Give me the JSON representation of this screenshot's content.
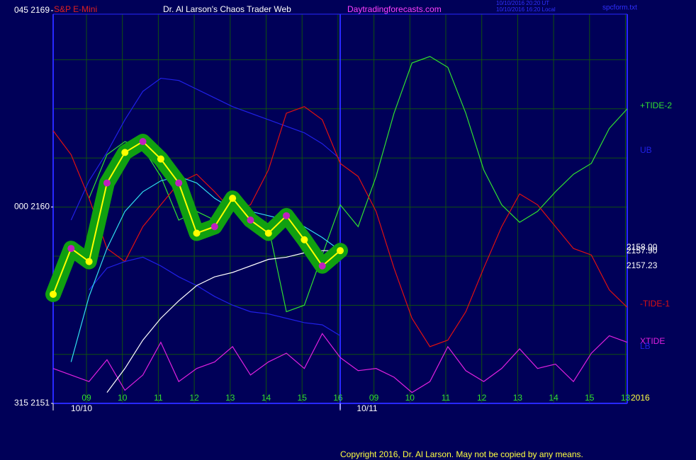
{
  "chart_data": {
    "type": "line",
    "header": {
      "symbol": "S&P E-Mini",
      "title": "Dr. Al Larson's Chaos Trader Web",
      "site": "Daytradingforecasts.com",
      "time_ut": "10/10/2016 20:20 UT",
      "time_local": "10/10/2016 16:20 Local",
      "file": "spcform.txt"
    },
    "ylim": [
      2151,
      2169
    ],
    "yticks": [
      {
        "value": 2151,
        "label": "315 2151"
      },
      {
        "value": 2160,
        "label": "000 2160"
      },
      {
        "value": 2169,
        "label": "045 2169"
      }
    ],
    "x_ticks": [
      "09",
      "10",
      "11",
      "12",
      "13",
      "14",
      "15",
      "16",
      "09",
      "10",
      "11",
      "12",
      "13",
      "14",
      "15",
      "13"
    ],
    "date_labels": [
      "10/10",
      "10/11"
    ],
    "year": "2016",
    "price_labels": [
      "2158.00",
      "2157.90",
      "2157.23"
    ],
    "copyright": "Copyright 2016, Dr. Al Larson. May not be copied by any means.",
    "series": [
      {
        "name": "+TIDE-2",
        "color": "#30e030",
        "values": [
          null,
          null,
          2160.4,
          2162.4,
          2163.0,
          2162.7,
          2161.4,
          2159.4,
          2159.8,
          2159.4,
          2160.1,
          2159.8,
          2159.1,
          2155.2,
          2155.5,
          2157.8,
          2160.1,
          2159.1,
          2161.4,
          2164.3,
          2166.6,
          2166.9,
          2166.4,
          2164.3,
          2161.7,
          2160.1,
          2159.3,
          2159.8,
          2160.7,
          2161.5,
          2162.0,
          2163.6,
          2164.5
        ]
      },
      {
        "name": "UB",
        "color": "#2020e8",
        "values": [
          null,
          2159.4,
          2161.2,
          2162.5,
          2164.0,
          2165.3,
          2165.9,
          2165.8,
          2165.4,
          2165.0,
          2164.6,
          2164.3,
          2164.0,
          2163.7,
          2163.4,
          2162.9,
          2162.2,
          null,
          null,
          null,
          null,
          null,
          null,
          null,
          null,
          null,
          null,
          null,
          null,
          null,
          null,
          null,
          null
        ]
      },
      {
        "name": "-TIDE-1",
        "color": "#e01010",
        "values": [
          2163.5,
          2162.4,
          2160.4,
          2158.1,
          2157.5,
          2159.1,
          2160.1,
          2161.1,
          2161.5,
          2160.7,
          2159.8,
          2160.1,
          2161.7,
          2164.3,
          2164.6,
          2164.0,
          2162.0,
          2161.4,
          2159.8,
          2157.2,
          2154.9,
          2153.6,
          2153.9,
          2155.2,
          2157.2,
          2159.1,
          2160.6,
          2160.1,
          2159.1,
          2158.1,
          2157.8,
          2156.2,
          2155.4
        ]
      },
      {
        "name": "XTIDE",
        "color": "#e020e0",
        "values": [
          2152.6,
          2152.3,
          2152.0,
          2153.0,
          2151.6,
          2152.3,
          2153.8,
          2152.0,
          2152.6,
          2152.9,
          2153.6,
          2152.3,
          2152.9,
          2153.3,
          2152.6,
          2154.2,
          2153.1,
          2152.5,
          2152.6,
          2152.2,
          2151.5,
          2152.0,
          2153.6,
          2152.5,
          2152.0,
          2152.6,
          2153.5,
          2152.6,
          2152.8,
          2152.0,
          2153.3,
          2154.1,
          2153.8
        ]
      },
      {
        "name": "LB",
        "color": "#2020e8",
        "values": [
          null,
          null,
          2156.2,
          2157.2,
          2157.5,
          2157.7,
          2157.3,
          2156.8,
          2156.4,
          2155.9,
          2155.5,
          2155.2,
          2155.1,
          2154.9,
          2154.7,
          2154.6,
          2154.1,
          null,
          null,
          null,
          null,
          null,
          null,
          null,
          null,
          null,
          null,
          null,
          null,
          null,
          null,
          null,
          null
        ]
      },
      {
        "color": "#30e0f0",
        "values": [
          null,
          2152.9,
          2155.9,
          2158.1,
          2159.8,
          2160.7,
          2161.2,
          2161.4,
          2161.1,
          2160.4,
          2159.9,
          2159.8,
          2159.6,
          2159.4,
          2159.1,
          2158.6,
          2158.0,
          null,
          null,
          null,
          null,
          null,
          null,
          null,
          null,
          null,
          null,
          null,
          null,
          null,
          null,
          null,
          null
        ]
      },
      {
        "color": "#ffffff",
        "values": [
          null,
          null,
          null,
          2151.5,
          2152.6,
          2153.9,
          2154.9,
          2155.7,
          2156.4,
          2156.8,
          2157.0,
          2157.3,
          2157.6,
          2157.7,
          2157.9,
          2158.0,
          2158.0,
          null,
          null,
          null,
          null,
          null,
          null,
          null,
          null,
          null,
          null,
          null,
          null,
          null,
          null,
          null,
          null
        ]
      },
      {
        "color": "#ffff00",
        "values": [
          2156.0,
          2158.1,
          2157.5,
          2161.1,
          2162.5,
          2163.0,
          2162.2,
          2161.1,
          2158.8,
          2159.1,
          2160.4,
          2159.4,
          2158.8,
          2159.6,
          2158.5,
          2157.3,
          2158.0,
          null,
          null,
          null,
          null,
          null,
          null,
          null,
          null,
          null,
          null,
          null,
          null,
          null,
          null,
          null,
          null
        ]
      }
    ]
  }
}
